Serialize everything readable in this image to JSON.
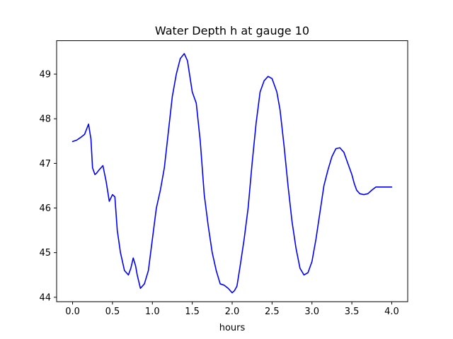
{
  "chart_data": {
    "type": "line",
    "title": "Water Depth h at gauge 10",
    "xlabel": "hours",
    "ylabel": "",
    "xlim": [
      -0.2,
      4.2
    ],
    "ylim": [
      43.9,
      49.75
    ],
    "xticks": [
      0.0,
      0.5,
      1.0,
      1.5,
      2.0,
      2.5,
      3.0,
      3.5,
      4.0
    ],
    "xtick_labels": [
      "0.0",
      "0.5",
      "1.0",
      "1.5",
      "2.0",
      "2.5",
      "3.0",
      "3.5",
      "4.0"
    ],
    "yticks": [
      44,
      45,
      46,
      47,
      48,
      49
    ],
    "ytick_labels": [
      "44",
      "45",
      "46",
      "47",
      "48",
      "49"
    ],
    "grid": false,
    "series": [
      {
        "color": "#0000ff",
        "x": [
          0.0,
          0.05,
          0.1,
          0.15,
          0.2,
          0.23,
          0.25,
          0.28,
          0.3,
          0.33,
          0.38,
          0.42,
          0.46,
          0.5,
          0.53,
          0.56,
          0.6,
          0.65,
          0.7,
          0.73,
          0.76,
          0.79,
          0.81,
          0.85,
          0.9,
          0.95,
          1.0,
          1.05,
          1.1,
          1.15,
          1.2,
          1.25,
          1.3,
          1.35,
          1.4,
          1.44,
          1.47,
          1.5,
          1.55,
          1.6,
          1.65,
          1.7,
          1.75,
          1.8,
          1.85,
          1.9,
          1.95,
          2.0,
          2.03,
          2.06,
          2.1,
          2.15,
          2.2,
          2.25,
          2.3,
          2.35,
          2.4,
          2.45,
          2.5,
          2.53,
          2.56,
          2.6,
          2.65,
          2.7,
          2.75,
          2.8,
          2.85,
          2.9,
          2.95,
          3.0,
          3.05,
          3.1,
          3.15,
          3.2,
          3.25,
          3.3,
          3.35,
          3.4,
          3.45,
          3.5,
          3.53,
          3.56,
          3.6,
          3.65,
          3.7,
          3.75,
          3.8,
          3.85,
          3.9,
          3.95,
          4.0
        ],
        "y": [
          47.49,
          47.52,
          47.58,
          47.65,
          47.88,
          47.55,
          46.9,
          46.75,
          46.78,
          46.85,
          46.95,
          46.6,
          46.15,
          46.3,
          46.25,
          45.5,
          45.0,
          44.6,
          44.5,
          44.65,
          44.88,
          44.7,
          44.5,
          44.2,
          44.3,
          44.6,
          45.3,
          46.0,
          46.4,
          46.9,
          47.7,
          48.5,
          49.0,
          49.35,
          49.46,
          49.3,
          48.95,
          48.6,
          48.35,
          47.5,
          46.3,
          45.6,
          45.0,
          44.6,
          44.3,
          44.27,
          44.2,
          44.1,
          44.15,
          44.25,
          44.7,
          45.3,
          46.0,
          47.0,
          47.9,
          48.6,
          48.85,
          48.95,
          48.9,
          48.75,
          48.6,
          48.2,
          47.4,
          46.5,
          45.7,
          45.1,
          44.65,
          44.5,
          44.55,
          44.8,
          45.3,
          45.9,
          46.5,
          46.85,
          47.15,
          47.33,
          47.35,
          47.25,
          47.0,
          46.75,
          46.55,
          46.4,
          46.32,
          46.3,
          46.32,
          46.4,
          46.47,
          46.47,
          46.47,
          46.47,
          46.47
        ]
      }
    ]
  }
}
